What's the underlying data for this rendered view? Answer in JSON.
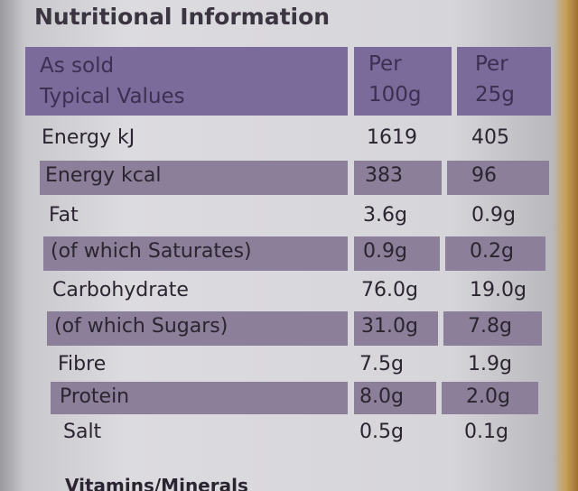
{
  "title": "Nutritional Information",
  "table": {
    "header": [
      [
        "As sold",
        "Typical Values"
      ],
      [
        "Per",
        "100g"
      ],
      [
        "Per",
        "25g"
      ]
    ],
    "rows": [
      [
        "Energy kJ",
        "1619",
        "405"
      ],
      [
        "Energy kcal",
        "383",
        "96"
      ],
      [
        "Fat",
        "3.6g",
        "0.9g"
      ],
      [
        "(of which Saturates)",
        "0.9g",
        "0.2g"
      ],
      [
        "Carbohydrate",
        "76.0g",
        "19.0g"
      ],
      [
        "(of which Sugars)",
        "31.0g",
        "7.8g"
      ],
      [
        "Fibre",
        "7.5g",
        "1.9g"
      ],
      [
        "Protein",
        "8.0g",
        "2.0g"
      ],
      [
        "Salt",
        "0.5g",
        "0.1g"
      ]
    ]
  },
  "footer": "Vitamins/Minerals"
}
